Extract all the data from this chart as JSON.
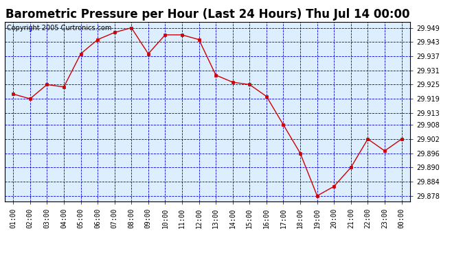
{
  "title": "Barometric Pressure per Hour (Last 24 Hours) Thu Jul 14 00:00",
  "copyright": "Copyright 2005 Curtronics.com",
  "hours": [
    "01:00",
    "02:00",
    "03:00",
    "04:00",
    "05:00",
    "06:00",
    "07:00",
    "08:00",
    "09:00",
    "10:00",
    "11:00",
    "12:00",
    "13:00",
    "14:00",
    "15:00",
    "16:00",
    "17:00",
    "18:00",
    "19:00",
    "20:00",
    "21:00",
    "22:00",
    "23:00",
    "00:00"
  ],
  "values": [
    29.921,
    29.919,
    29.925,
    29.924,
    29.938,
    29.944,
    29.947,
    29.949,
    29.938,
    29.946,
    29.946,
    29.944,
    29.929,
    29.926,
    29.925,
    29.92,
    29.908,
    29.896,
    29.878,
    29.882,
    29.89,
    29.902,
    29.897,
    29.902
  ],
  "ylim_min": 29.8755,
  "ylim_max": 29.9515,
  "yticks": [
    29.878,
    29.884,
    29.89,
    29.896,
    29.902,
    29.908,
    29.913,
    29.919,
    29.925,
    29.931,
    29.937,
    29.943,
    29.949
  ],
  "line_color": "#cc0000",
  "marker_color": "#cc0000",
  "plot_bg": "#ddeeff",
  "outer_bg": "#ffffff",
  "grid_color": "#0000dd",
  "title_fontsize": 12,
  "tick_fontsize": 7,
  "copyright_fontsize": 7
}
